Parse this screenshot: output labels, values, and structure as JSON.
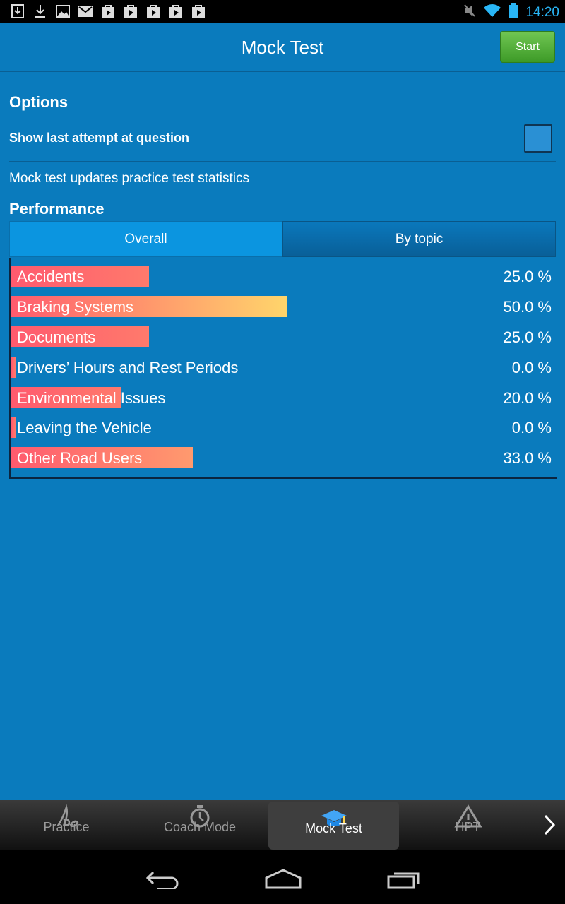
{
  "status_bar": {
    "time": "14:20"
  },
  "header": {
    "title": "Mock Test",
    "start_label": "Start"
  },
  "options": {
    "heading": "Options",
    "show_last_attempt_label": "Show last attempt at question",
    "show_last_attempt_checked": false,
    "note": "Mock test updates practice test statistics"
  },
  "performance": {
    "heading": "Performance",
    "tabs": [
      {
        "label": "Overall",
        "active": true
      },
      {
        "label": "By topic",
        "active": false
      }
    ],
    "rows": [
      {
        "label": "Accidents",
        "value_text": "25.0 %",
        "fraction": 0.25
      },
      {
        "label": "Braking Systems",
        "value_text": "50.0 %",
        "fraction": 0.5
      },
      {
        "label": "Documents",
        "value_text": "25.0 %",
        "fraction": 0.25
      },
      {
        "label": "Drivers’ Hours and Rest Periods",
        "value_text": "0.0 %",
        "fraction": 0.0
      },
      {
        "label": "Environmental Issues",
        "value_text": "20.0 %",
        "fraction": 0.2
      },
      {
        "label": "Leaving the Vehicle",
        "value_text": "0.0 %",
        "fraction": 0.0
      },
      {
        "label": "Other Road Users",
        "value_text": "33.0 %",
        "fraction": 0.33
      }
    ]
  },
  "bottom_nav": [
    {
      "label": "Practice",
      "icon": "pencil-icon",
      "active": false
    },
    {
      "label": "Coach Mode",
      "icon": "stopwatch-icon",
      "active": false
    },
    {
      "label": "Mock Test",
      "icon": "graduation-cap-icon",
      "active": true
    },
    {
      "label": "HPT",
      "icon": "warning-triangle-icon",
      "active": false
    }
  ],
  "colors": {
    "background": "#0a7bbd",
    "start_button": "#4caf35",
    "bar_low": "#ff5a6e",
    "bar_high": "#ffd56b"
  }
}
